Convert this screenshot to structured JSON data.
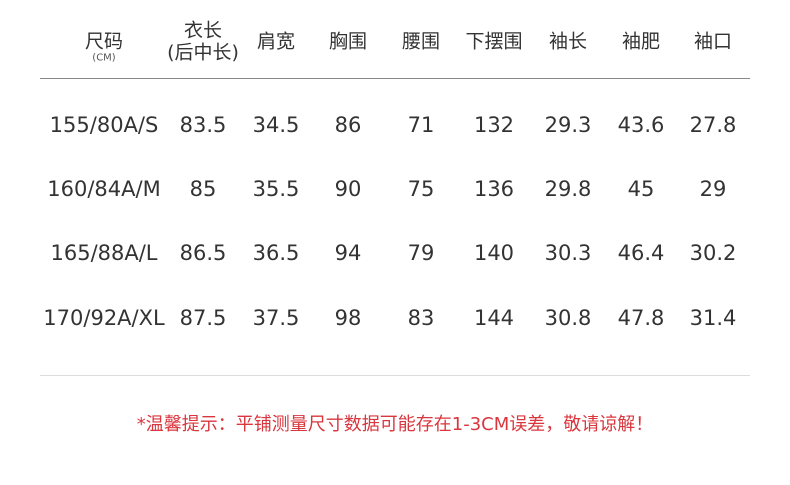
{
  "table": {
    "header": [
      {
        "label": "尺码",
        "sub": "(CM)"
      },
      {
        "label": "衣长",
        "sub": "(后中长)"
      },
      {
        "label": "肩宽"
      },
      {
        "label": "胸围"
      },
      {
        "label": "腰围"
      },
      {
        "label": "下摆围"
      },
      {
        "label": "袖长"
      },
      {
        "label": "袖肥"
      },
      {
        "label": "袖口"
      }
    ],
    "rows": [
      [
        "155/80A/S",
        "83.5",
        "34.5",
        "86",
        "71",
        "132",
        "29.3",
        "43.6",
        "27.8"
      ],
      [
        "160/84A/M",
        "85",
        "35.5",
        "90",
        "75",
        "136",
        "29.8",
        "45",
        "29"
      ],
      [
        "165/88A/L",
        "86.5",
        "36.5",
        "94",
        "79",
        "140",
        "30.3",
        "46.4",
        "30.2"
      ],
      [
        "170/92A/XL",
        "87.5",
        "37.5",
        "98",
        "83",
        "144",
        "30.8",
        "47.8",
        "31.4"
      ]
    ]
  },
  "note": "*温馨提示：平铺测量尺寸数据可能存在1-3CM误差，敬请谅解！"
}
